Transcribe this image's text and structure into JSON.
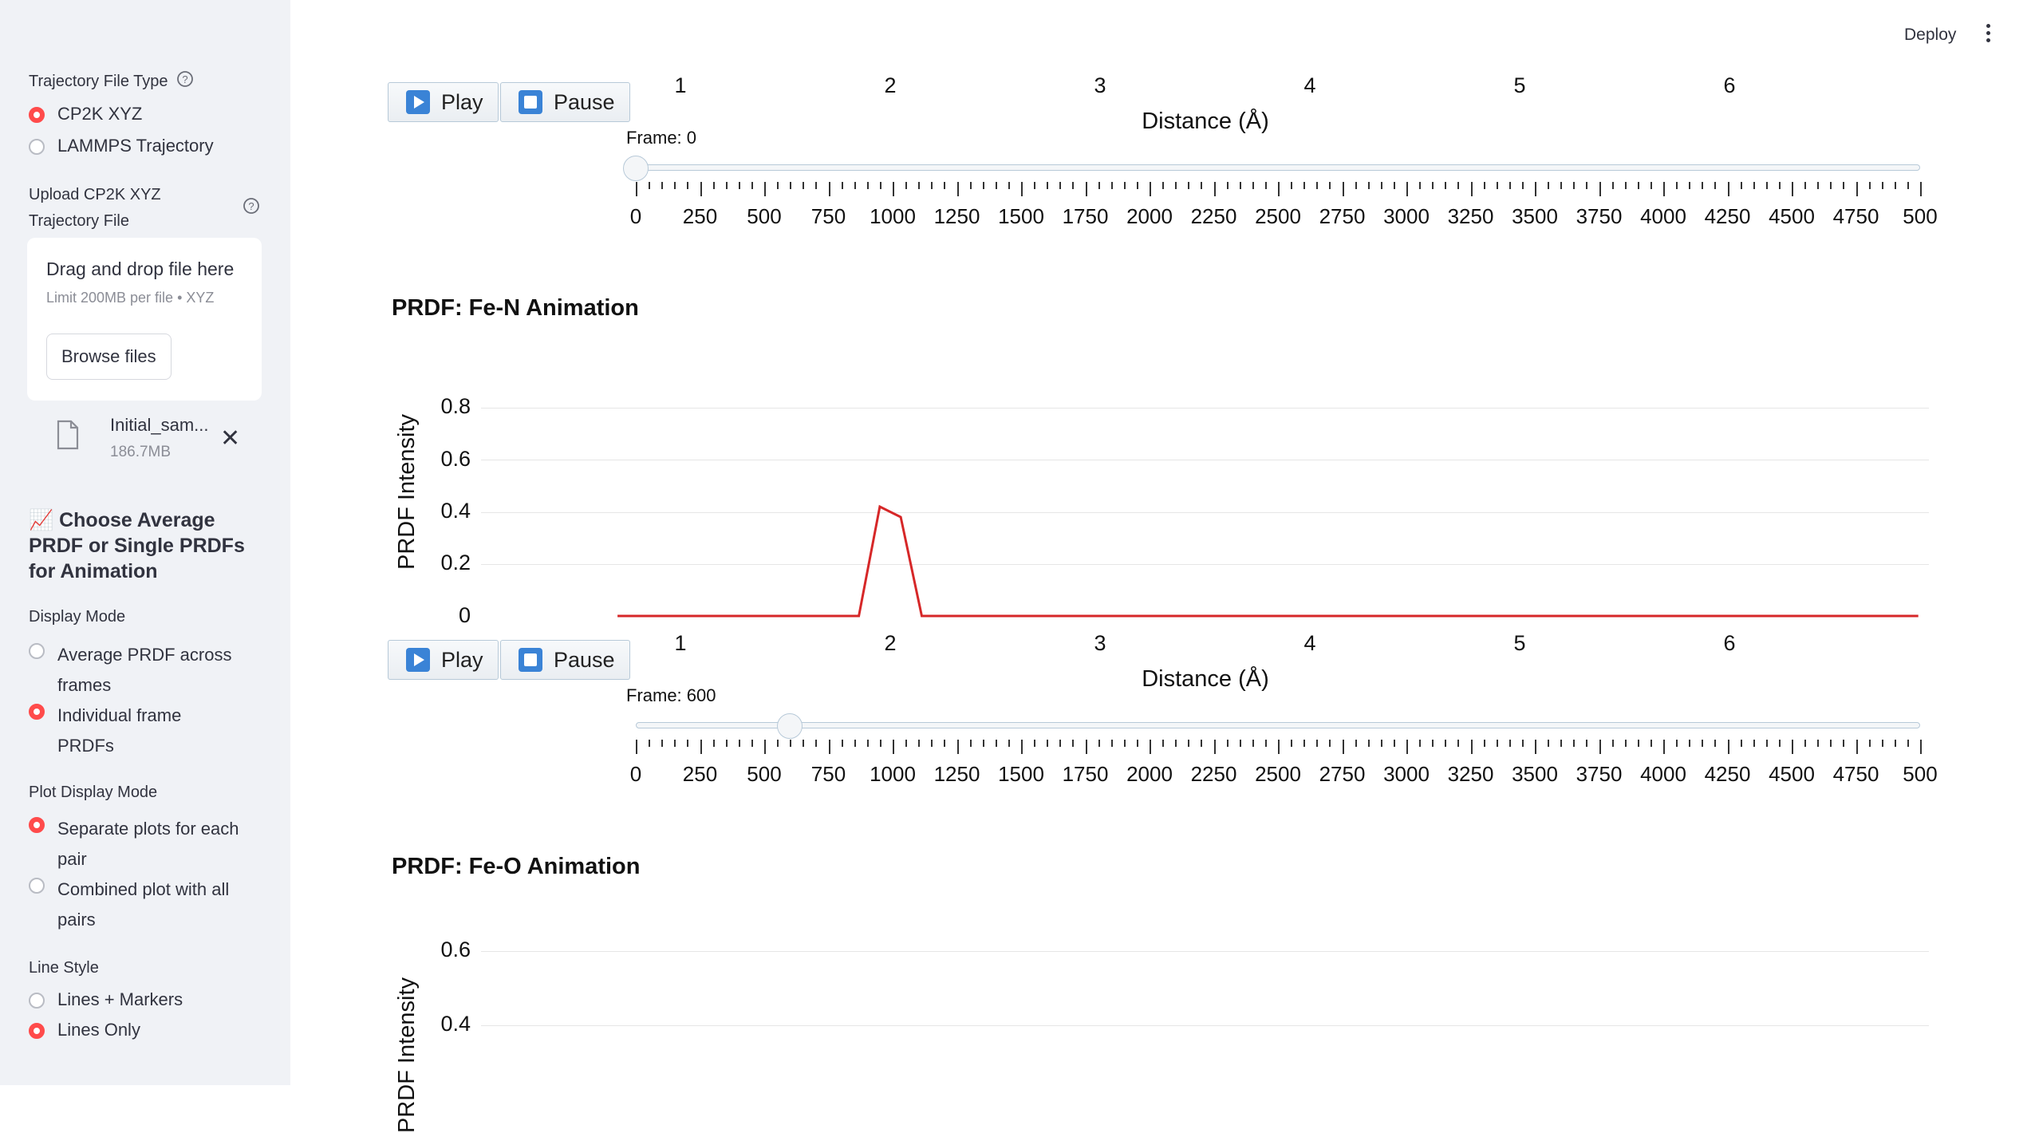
{
  "sidebar": {
    "file_type_label": "Trajectory File Type",
    "file_type_options": [
      {
        "label": "CP2K XYZ",
        "selected": true
      },
      {
        "label": "LAMMPS Trajectory",
        "selected": false
      }
    ],
    "upload_label": "Upload CP2K XYZ Trajectory File",
    "dropzone": {
      "title": "Drag and drop file here",
      "limit": "Limit 200MB per file • XYZ",
      "browse_label": "Browse files"
    },
    "file": {
      "name": "Initial_sam...",
      "size": "186.7MB"
    },
    "section_icon": "📈",
    "section_title": "Choose Average PRDF or Single PRDFs for Animation",
    "display_mode_label": "Display Mode",
    "display_mode_options": [
      {
        "label": "Average PRDF across frames",
        "selected": false
      },
      {
        "label": "Individual frame PRDFs",
        "selected": true
      }
    ],
    "plot_display_label": "Plot Display Mode",
    "plot_display_options": [
      {
        "label": "Separate plots for each pair",
        "selected": true
      },
      {
        "label": "Combined plot with all pairs",
        "selected": false
      }
    ],
    "line_style_label": "Line Style",
    "line_style_options": [
      {
        "label": "Lines + Markers",
        "selected": false
      },
      {
        "label": "Lines Only",
        "selected": true
      }
    ]
  },
  "header": {
    "deploy_label": "Deploy"
  },
  "controls": {
    "play_label": "Play",
    "pause_label": "Pause"
  },
  "slider_ticks": [
    "0",
    "250",
    "500",
    "750",
    "1000",
    "1250",
    "1500",
    "1750",
    "2000",
    "2250",
    "2500",
    "2750",
    "3000",
    "3250",
    "3500",
    "3750",
    "4000",
    "4250",
    "4500",
    "4750",
    "500"
  ],
  "slider_max": 5000,
  "charts": {
    "top": {
      "frame_label": "Frame: 0",
      "frame_value": 0,
      "xlabel": "Distance (Å)",
      "xticks": [
        "1",
        "2",
        "3",
        "4",
        "5",
        "6"
      ]
    },
    "fe_n": {
      "title": "PRDF: Fe-N Animation",
      "frame_label": "Frame: 600",
      "frame_value": 600,
      "xlabel": "Distance (Å)",
      "ylabel": "PRDF Intensity",
      "xticks": [
        "1",
        "2",
        "3",
        "4",
        "5",
        "6"
      ],
      "yticks": [
        "0.8",
        "0.6",
        "0.4",
        "0.2",
        "0"
      ]
    },
    "fe_o": {
      "title": "PRDF: Fe-O Animation",
      "ylabel": "PRDF Intensity",
      "yticks": [
        "0.6",
        "0.4"
      ]
    }
  },
  "chart_data": [
    {
      "type": "line",
      "title": "PRDF: Fe-N Animation",
      "xlabel": "Distance (Å)",
      "ylabel": "PRDF Intensity",
      "color": "#d62728",
      "xlim": [
        0.7,
        6.9
      ],
      "ylim": [
        0,
        0.85
      ],
      "x": [
        0.7,
        1.85,
        1.95,
        2.05,
        2.15,
        6.9
      ],
      "y": [
        0,
        0,
        0.42,
        0.38,
        0,
        0
      ]
    },
    {
      "type": "line",
      "title": "PRDF: Fe-O Animation",
      "ylabel": "PRDF Intensity",
      "ylim": [
        0.3,
        0.65
      ],
      "x": [],
      "y": []
    }
  ],
  "colors": {
    "accent": "#ff4b4b",
    "line": "#d62728",
    "button_icon": "#3a83d6"
  }
}
